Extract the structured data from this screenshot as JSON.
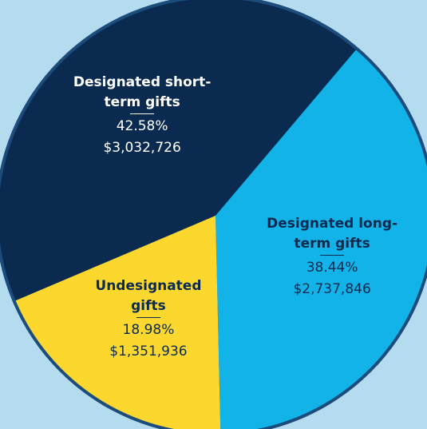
{
  "chart_data": {
    "type": "pie",
    "categories": [
      "Designated short-term gifts",
      "Designated long-term gifts",
      "Undesignated gifts"
    ],
    "values": [
      42.58,
      38.44,
      18.98
    ],
    "value_labels": [
      "42.58%",
      "38.44%",
      "18.98%"
    ],
    "amounts": [
      3032726,
      2737846,
      1351936
    ],
    "amount_labels": [
      "$3,032,726",
      "$2,737,846",
      "$1,351,936"
    ],
    "colors": [
      "#0b2a4f",
      "#12b3e9",
      "#fcd82e"
    ]
  }
}
